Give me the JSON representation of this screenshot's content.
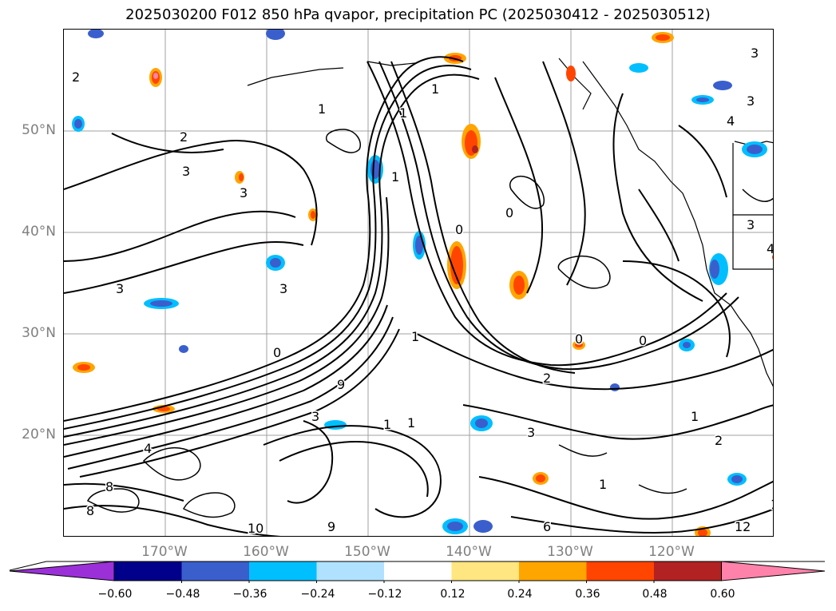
{
  "title": "2025030200 F012 850 hPa qvapor, precipitation PC (2025030412 - 2025030512)",
  "lat_labels": [
    "50°N",
    "40°N",
    "30°N",
    "20°N"
  ],
  "lon_labels": [
    "170°W",
    "160°W",
    "150°W",
    "140°W",
    "130°W",
    "120°W"
  ],
  "colorbar": {
    "ticks": [
      "−0.60",
      "−0.48",
      "−0.36",
      "−0.24",
      "−0.12",
      "0.12",
      "0.24",
      "0.36",
      "0.48",
      "0.60"
    ],
    "colors": [
      "#9b30d9",
      "#00008b",
      "#3a5fcd",
      "#00bfff",
      "#b0e2ff",
      "#ffffff",
      "#ffe680",
      "#ffa500",
      "#ff4500",
      "#b22222",
      "#ff82ab"
    ]
  },
  "contour_labels": [
    "1",
    "2",
    "3",
    "3",
    "1",
    "1",
    "0",
    "3",
    "1",
    "0",
    "3",
    "0",
    "2",
    "1",
    "2",
    "3",
    "1",
    "4",
    "3",
    "4",
    "3",
    "1",
    "2",
    "3",
    "4",
    "1",
    "10",
    "12",
    "0",
    "8",
    "6",
    "9",
    "10",
    "8",
    "9",
    "3",
    "1",
    "0"
  ],
  "colors": {
    "contour": "#000000",
    "grid": "#a0a0a0",
    "axis_label": "#808080",
    "neg_light": "#b0e2ff",
    "neg_mid": "#00bfff",
    "neg_strong": "#3a5fcd",
    "pos_light": "#ffe680",
    "pos_mid": "#ffa500",
    "pos_strong": "#ff4500"
  }
}
